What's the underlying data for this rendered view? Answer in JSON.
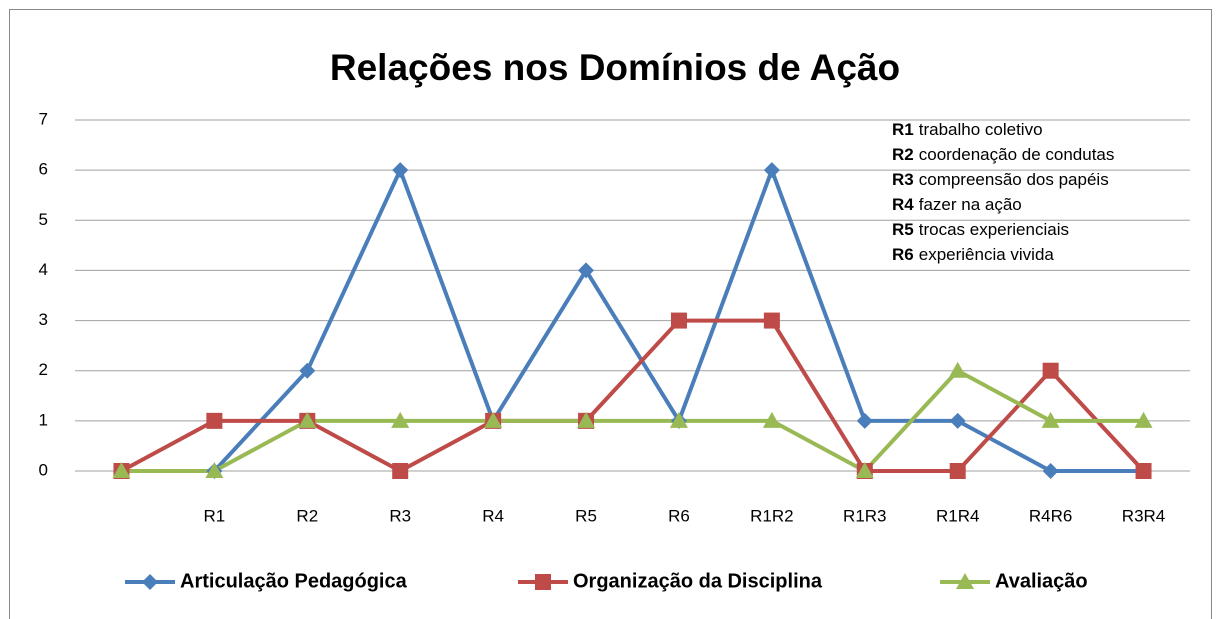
{
  "chart_data": {
    "type": "line",
    "title": "Relações nos Domínios de Ação",
    "categories": [
      null,
      "R1",
      "R2",
      "R3",
      "R4",
      "R5",
      "R6",
      "R1R2",
      "R1R3",
      "R1R4",
      "R4R6",
      "R3R4"
    ],
    "series": [
      {
        "name": "Articulação Pedagógica",
        "color": "#4a7ebb",
        "marker": "diamond",
        "values": [
          0,
          0,
          2,
          6,
          1,
          4,
          1,
          6,
          1,
          1,
          0,
          0
        ]
      },
      {
        "name": "Organização da Disciplina",
        "color": "#be4b48",
        "marker": "square",
        "values": [
          0,
          1,
          1,
          0,
          1,
          1,
          3,
          3,
          0,
          0,
          2,
          0
        ]
      },
      {
        "name": "Avaliação",
        "color": "#98b954",
        "marker": "triangle",
        "values": [
          0,
          0,
          1,
          1,
          1,
          1,
          1,
          1,
          0,
          2,
          1,
          1
        ]
      }
    ],
    "ylim": [
      0,
      7
    ],
    "yticks": [
      0,
      1,
      2,
      3,
      4,
      5,
      6,
      7
    ],
    "grid": true,
    "legend": "bottom",
    "annotations": [
      {
        "code": "R1",
        "text": "trabalho coletivo"
      },
      {
        "code": "R2",
        "text": "coordenação de condutas"
      },
      {
        "code": "R3",
        "text": "compreensão dos papéis"
      },
      {
        "code": "R4",
        "text": "fazer na ação"
      },
      {
        "code": "R5",
        "text": "trocas experienciais"
      },
      {
        "code": "R6",
        "text": "experiência vivida"
      }
    ]
  }
}
